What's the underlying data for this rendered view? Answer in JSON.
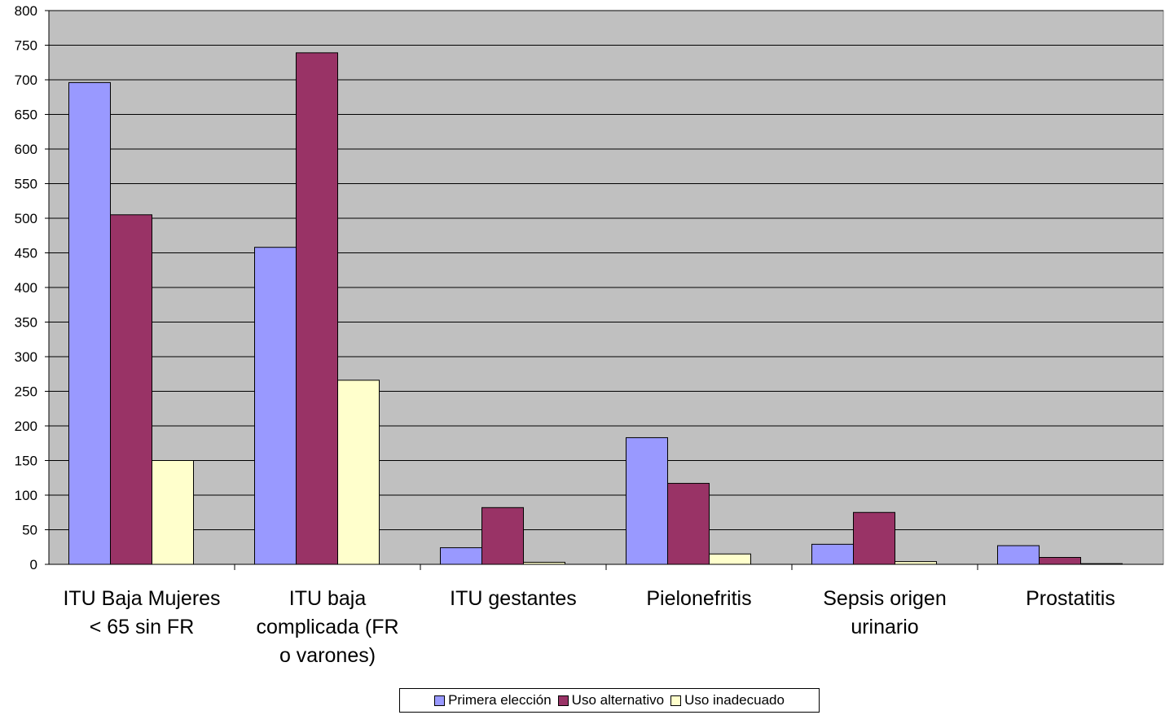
{
  "chart_data": {
    "type": "bar",
    "categories": [
      [
        "ITU Baja Mujeres",
        "< 65 sin FR"
      ],
      [
        "ITU baja",
        "complicada (FR",
        "o varones)"
      ],
      [
        "ITU gestantes"
      ],
      [
        "Pielonefritis"
      ],
      [
        "Sepsis origen",
        "urinario"
      ],
      [
        "Prostatitis"
      ]
    ],
    "series": [
      {
        "name": "Primera elección",
        "color": "#9999ff",
        "values": [
          696,
          458,
          24,
          183,
          29,
          27
        ]
      },
      {
        "name": "Uso alternativo",
        "color": "#993366",
        "values": [
          505,
          739,
          82,
          117,
          75,
          10
        ]
      },
      {
        "name": "Uso inadecuado",
        "color": "#ffffcc",
        "values": [
          150,
          266,
          3,
          15,
          4,
          1
        ]
      }
    ],
    "ylim": [
      0,
      800
    ],
    "yticks": [
      0,
      50,
      100,
      150,
      200,
      250,
      300,
      350,
      400,
      450,
      500,
      550,
      600,
      650,
      700,
      750,
      800
    ],
    "grid": true,
    "plot_background": "#c0c0c0",
    "legend_position": "bottom",
    "title": "",
    "xlabel": "",
    "ylabel": ""
  }
}
